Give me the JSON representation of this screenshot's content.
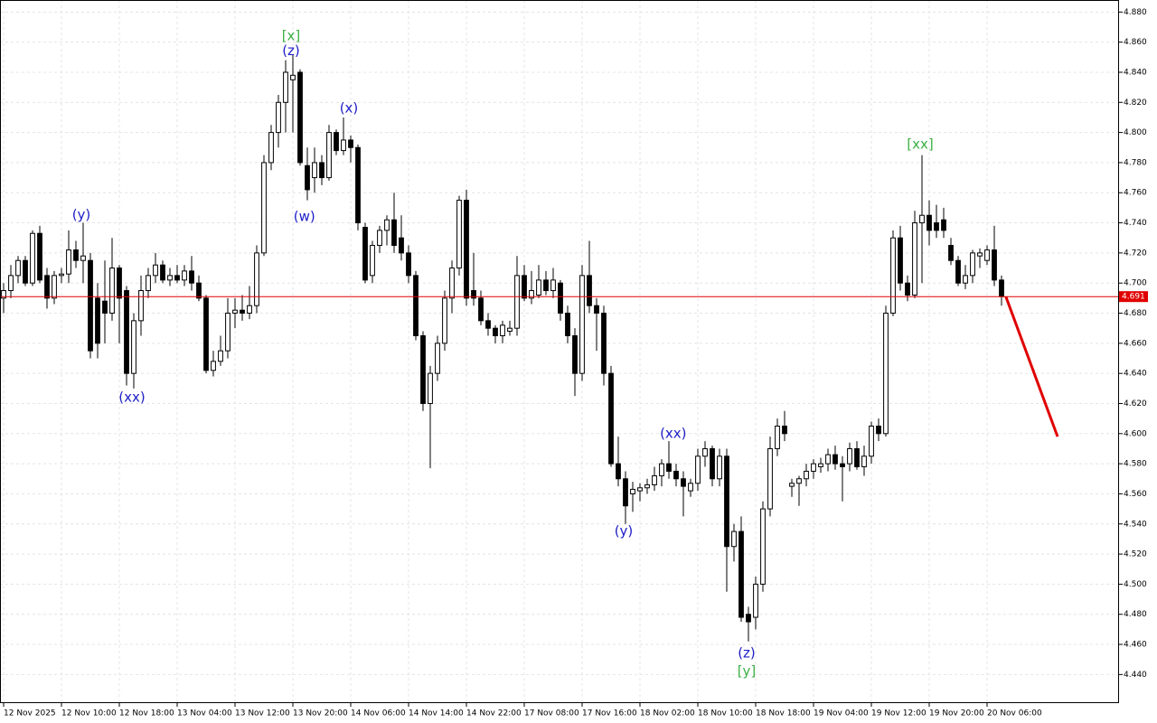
{
  "chart_data": {
    "type": "candlestick",
    "up_color": "#ffffff",
    "down_color": "#000000",
    "wick_color": "#000000",
    "grid": true,
    "ylim": [
      4.421,
      4.888
    ],
    "yticks": [
      {
        "value": 4.44,
        "label": "4.440"
      },
      {
        "value": 4.46,
        "label": "4.460"
      },
      {
        "value": 4.48,
        "label": "4.480"
      },
      {
        "value": 4.5,
        "label": "4.500"
      },
      {
        "value": 4.52,
        "label": "4.520"
      },
      {
        "value": 4.54,
        "label": "4.540"
      },
      {
        "value": 4.56,
        "label": "4.560"
      },
      {
        "value": 4.58,
        "label": "4.580"
      },
      {
        "value": 4.6,
        "label": "4.600"
      },
      {
        "value": 4.62,
        "label": "4.620"
      },
      {
        "value": 4.64,
        "label": "4.640"
      },
      {
        "value": 4.66,
        "label": "4.660"
      },
      {
        "value": 4.68,
        "label": "4.680"
      },
      {
        "value": 4.7,
        "label": "4.700"
      },
      {
        "value": 4.72,
        "label": "4.720"
      },
      {
        "value": 4.74,
        "label": "4.740"
      },
      {
        "value": 4.76,
        "label": "4.760"
      },
      {
        "value": 4.78,
        "label": "4.780"
      },
      {
        "value": 4.8,
        "label": "4.800"
      },
      {
        "value": 4.82,
        "label": "4.820"
      },
      {
        "value": 4.84,
        "label": "4.840"
      },
      {
        "value": 4.86,
        "label": "4.860"
      },
      {
        "value": 4.88,
        "label": "4.880"
      }
    ],
    "xlim": [
      -0.5,
      154.25
    ],
    "xticks": [
      {
        "value": 0,
        "label": "12 Nov 2025"
      },
      {
        "value": 8,
        "label": "12 Nov 10:00"
      },
      {
        "value": 16,
        "label": "12 Nov 18:00"
      },
      {
        "value": 24,
        "label": "13 Nov 04:00"
      },
      {
        "value": 32,
        "label": "13 Nov 12:00"
      },
      {
        "value": 40,
        "label": "13 Nov 20:00"
      },
      {
        "value": 48,
        "label": "14 Nov 06:00"
      },
      {
        "value": 56,
        "label": "14 Nov 14:00"
      },
      {
        "value": 64,
        "label": "14 Nov 22:00"
      },
      {
        "value": 72,
        "label": "17 Nov 08:00"
      },
      {
        "value": 80,
        "label": "17 Nov 16:00"
      },
      {
        "value": 88,
        "label": "18 Nov 02:00"
      },
      {
        "value": 96,
        "label": "18 Nov 10:00"
      },
      {
        "value": 104,
        "label": "18 Nov 18:00"
      },
      {
        "value": 112,
        "label": "19 Nov 04:00"
      },
      {
        "value": 120,
        "label": "19 Nov 12:00"
      },
      {
        "value": 128,
        "label": "19 Nov 20:00"
      },
      {
        "value": 136,
        "label": "20 Nov 06:00"
      }
    ],
    "ohlc": [
      [
        4.69,
        4.7,
        4.68,
        4.695
      ],
      [
        4.695,
        4.712,
        4.69,
        4.705
      ],
      [
        4.705,
        4.718,
        4.7,
        4.715
      ],
      [
        4.715,
        4.718,
        4.698,
        4.7
      ],
      [
        4.7,
        4.735,
        4.698,
        4.733
      ],
      [
        4.733,
        4.738,
        4.7,
        4.702
      ],
      [
        4.705,
        4.71,
        4.683,
        4.69
      ],
      [
        4.69,
        4.708,
        4.686,
        4.705
      ],
      [
        4.705,
        4.71,
        4.7,
        4.706
      ],
      [
        4.706,
        4.735,
        4.7,
        4.722
      ],
      [
        4.722,
        4.728,
        4.71,
        4.715
      ],
      [
        4.715,
        4.74,
        4.7,
        4.718
      ],
      [
        4.715,
        4.72,
        4.65,
        4.655
      ],
      [
        4.69,
        4.7,
        4.65,
        4.66
      ],
      [
        4.688,
        4.715,
        4.66,
        4.68
      ],
      [
        4.68,
        4.73,
        4.675,
        4.71
      ],
      [
        4.71,
        4.712,
        4.66,
        4.69
      ],
      [
        4.695,
        4.698,
        4.632,
        4.64
      ],
      [
        4.64,
        4.68,
        4.63,
        4.675
      ],
      [
        4.675,
        4.705,
        4.665,
        4.695
      ],
      [
        4.695,
        4.71,
        4.69,
        4.705
      ],
      [
        4.705,
        4.72,
        4.7,
        4.712
      ],
      [
        4.712,
        4.715,
        4.7,
        4.702
      ],
      [
        4.702,
        4.71,
        4.698,
        4.705
      ],
      [
        4.705,
        4.712,
        4.7,
        4.702
      ],
      [
        4.702,
        4.712,
        4.698,
        4.708
      ],
      [
        4.708,
        4.718,
        4.695,
        4.7
      ],
      [
        4.7,
        4.705,
        4.688,
        4.69
      ],
      [
        4.69,
        4.692,
        4.64,
        4.642
      ],
      [
        4.642,
        4.655,
        4.638,
        4.648
      ],
      [
        4.648,
        4.665,
        4.645,
        4.655
      ],
      [
        4.655,
        4.69,
        4.65,
        4.68
      ],
      [
        4.68,
        4.69,
        4.67,
        4.682
      ],
      [
        4.682,
        4.692,
        4.675,
        4.68
      ],
      [
        4.68,
        4.698,
        4.676,
        4.685
      ],
      [
        4.685,
        4.725,
        4.68,
        4.72
      ],
      [
        4.72,
        4.785,
        4.718,
        4.78
      ],
      [
        4.78,
        4.805,
        4.775,
        4.8
      ],
      [
        4.8,
        4.825,
        4.79,
        4.82
      ],
      [
        4.82,
        4.848,
        4.8,
        4.84
      ],
      [
        4.835,
        4.852,
        4.8,
        4.838
      ],
      [
        4.84,
        4.842,
        4.778,
        4.78
      ],
      [
        4.778,
        4.79,
        4.755,
        4.762
      ],
      [
        4.77,
        4.79,
        4.76,
        4.78
      ],
      [
        4.78,
        4.785,
        4.765,
        4.77
      ],
      [
        4.77,
        4.805,
        4.768,
        4.8
      ],
      [
        4.8,
        4.802,
        4.785,
        4.788
      ],
      [
        4.788,
        4.81,
        4.785,
        4.795
      ],
      [
        4.795,
        4.798,
        4.78,
        4.79
      ],
      [
        4.79,
        4.792,
        4.735,
        4.74
      ],
      [
        4.737,
        4.74,
        4.7,
        4.702
      ],
      [
        4.705,
        4.728,
        4.7,
        4.725
      ],
      [
        4.725,
        4.738,
        4.72,
        4.735
      ],
      [
        4.735,
        4.745,
        4.725,
        4.742
      ],
      [
        4.742,
        4.76,
        4.72,
        4.725
      ],
      [
        4.73,
        4.745,
        4.715,
        4.72
      ],
      [
        4.72,
        4.725,
        4.7,
        4.705
      ],
      [
        4.705,
        4.708,
        4.662,
        4.665
      ],
      [
        4.665,
        4.668,
        4.615,
        4.62
      ],
      [
        4.62,
        4.645,
        4.577,
        4.64
      ],
      [
        4.64,
        4.665,
        4.635,
        4.66
      ],
      [
        4.66,
        4.695,
        4.655,
        4.69
      ],
      [
        4.69,
        4.715,
        4.68,
        4.71
      ],
      [
        4.71,
        4.758,
        4.705,
        4.755
      ],
      [
        4.755,
        4.762,
        4.685,
        4.69
      ],
      [
        4.695,
        4.72,
        4.685,
        4.69
      ],
      [
        4.69,
        4.695,
        4.672,
        4.675
      ],
      [
        4.675,
        4.68,
        4.665,
        4.67
      ],
      [
        4.67,
        4.672,
        4.66,
        4.665
      ],
      [
        4.665,
        4.675,
        4.66,
        4.672
      ],
      [
        4.668,
        4.675,
        4.665,
        4.67
      ],
      [
        4.67,
        4.718,
        4.665,
        4.705
      ],
      [
        4.705,
        4.712,
        4.688,
        4.69
      ],
      [
        4.69,
        4.708,
        4.686,
        4.695
      ],
      [
        4.692,
        4.712,
        4.69,
        4.702
      ],
      [
        4.702,
        4.708,
        4.692,
        4.695
      ],
      [
        4.695,
        4.71,
        4.69,
        4.702
      ],
      [
        4.7,
        4.702,
        4.675,
        4.68
      ],
      [
        4.68,
        4.685,
        4.66,
        4.665
      ],
      [
        4.665,
        4.67,
        4.625,
        4.64
      ],
      [
        4.64,
        4.712,
        4.635,
        4.705
      ],
      [
        4.705,
        4.728,
        4.68,
        4.685
      ],
      [
        4.685,
        4.69,
        4.655,
        4.68
      ],
      [
        4.68,
        4.685,
        4.632,
        4.64
      ],
      [
        4.64,
        4.645,
        4.578,
        4.58
      ],
      [
        4.58,
        4.598,
        4.565,
        4.57
      ],
      [
        4.57,
        4.575,
        4.54,
        4.552
      ],
      [
        4.56,
        4.568,
        4.548,
        4.563
      ],
      [
        4.562,
        4.567,
        4.555,
        4.564
      ],
      [
        4.564,
        4.57,
        4.56,
        4.566
      ],
      [
        4.566,
        4.578,
        4.562,
        4.572
      ],
      [
        4.572,
        4.583,
        4.565,
        4.58
      ],
      [
        4.58,
        4.595,
        4.57,
        4.575
      ],
      [
        4.575,
        4.58,
        4.565,
        4.57
      ],
      [
        4.57,
        4.575,
        4.545,
        4.565
      ],
      [
        4.562,
        4.57,
        4.558,
        4.567
      ],
      [
        4.567,
        4.59,
        4.562,
        4.585
      ],
      [
        4.585,
        4.595,
        4.578,
        4.59
      ],
      [
        4.59,
        4.592,
        4.565,
        4.57
      ],
      [
        4.57,
        4.59,
        4.565,
        4.585
      ],
      [
        4.585,
        4.59,
        4.495,
        4.525
      ],
      [
        4.525,
        4.54,
        4.515,
        4.535
      ],
      [
        4.535,
        4.545,
        4.475,
        4.478
      ],
      [
        4.48,
        4.485,
        4.462,
        4.475
      ],
      [
        4.478,
        4.505,
        4.47,
        4.5
      ],
      [
        4.5,
        4.555,
        4.495,
        4.55
      ],
      [
        4.55,
        4.598,
        4.545,
        4.59
      ],
      [
        4.59,
        4.61,
        4.585,
        4.605
      ],
      [
        4.605,
        4.615,
        4.595,
        4.6
      ],
      [
        4.565,
        4.57,
        4.558,
        4.567
      ],
      [
        4.567,
        4.572,
        4.552,
        4.57
      ],
      [
        4.57,
        4.58,
        4.565,
        4.575
      ],
      [
        4.575,
        4.583,
        4.57,
        4.58
      ],
      [
        4.578,
        4.584,
        4.574,
        4.58
      ],
      [
        4.58,
        4.59,
        4.575,
        4.586
      ],
      [
        4.586,
        4.592,
        4.576,
        4.58
      ],
      [
        4.58,
        4.585,
        4.555,
        4.578
      ],
      [
        4.58,
        4.594,
        4.575,
        4.59
      ],
      [
        4.59,
        4.595,
        4.576,
        4.578
      ],
      [
        4.578,
        4.592,
        4.572,
        4.585
      ],
      [
        4.585,
        4.608,
        4.58,
        4.605
      ],
      [
        4.605,
        4.61,
        4.595,
        4.6
      ],
      [
        4.6,
        4.685,
        4.598,
        4.68
      ],
      [
        4.68,
        4.735,
        4.678,
        4.73
      ],
      [
        4.73,
        4.738,
        4.695,
        4.7
      ],
      [
        4.7,
        4.705,
        4.688,
        4.692
      ],
      [
        4.692,
        4.748,
        4.69,
        4.74
      ],
      [
        4.74,
        4.785,
        4.7,
        4.745
      ],
      [
        4.745,
        4.755,
        4.725,
        4.735
      ],
      [
        4.74,
        4.752,
        4.73,
        4.735
      ],
      [
        4.742,
        4.75,
        4.73,
        4.735
      ],
      [
        4.725,
        4.73,
        4.712,
        4.715
      ],
      [
        4.715,
        4.718,
        4.698,
        4.7
      ],
      [
        4.7,
        4.712,
        4.696,
        4.705
      ],
      [
        4.705,
        4.722,
        4.7,
        4.72
      ],
      [
        4.718,
        4.723,
        4.71,
        4.72
      ],
      [
        4.715,
        4.725,
        4.712,
        4.722
      ],
      [
        4.722,
        4.738,
        4.698,
        4.702
      ],
      [
        4.702,
        4.705,
        4.685,
        4.691
      ]
    ],
    "last_price": 4.691,
    "last_price_color": "#e00000",
    "forecast": {
      "color": "#e00000",
      "x": [
        138.6,
        145.75
      ],
      "values": [
        4.691,
        4.598
      ]
    },
    "annotations": [
      {
        "text": "[x]",
        "x": 39.75,
        "y": 4.864,
        "color": "#3cb043"
      },
      {
        "text": "(z)",
        "x": 39.75,
        "y": 4.854,
        "color": "#2020c8"
      },
      {
        "text": "(y)",
        "x": 10.75,
        "y": 4.745,
        "color": "#2020c8"
      },
      {
        "text": "(x)",
        "x": 47.75,
        "y": 4.816,
        "color": "#2020c8"
      },
      {
        "text": "(w)",
        "x": 41.6,
        "y": 4.744,
        "color": "#2020c8"
      },
      {
        "text": "(xx)",
        "x": 17.75,
        "y": 4.624,
        "color": "#2020c8"
      },
      {
        "text": "(xx)",
        "x": 92.6,
        "y": 4.6,
        "color": "#2020c8"
      },
      {
        "text": "(y)",
        "x": 85.75,
        "y": 4.535,
        "color": "#2020c8"
      },
      {
        "text": "(z)",
        "x": 102.75,
        "y": 4.454,
        "color": "#2020c8"
      },
      {
        "text": "[y]",
        "x": 102.75,
        "y": 4.442,
        "color": "#3cb043"
      },
      {
        "text": "[xx]",
        "x": 126.75,
        "y": 4.792,
        "color": "#3cb043"
      }
    ]
  }
}
